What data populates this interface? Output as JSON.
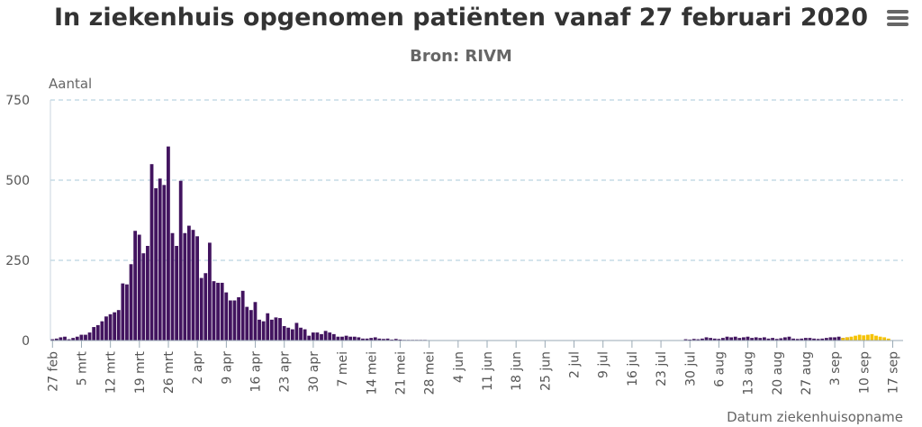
{
  "chart_data": {
    "type": "bar",
    "title": "In ziekenhuis opgenomen patiënten vanaf 27 februari 2020",
    "subtitle": "Bron: RIVM",
    "ylabel": "Aantal",
    "xlabel": "Datum ziekenhuisopname",
    "ylim": [
      0,
      750
    ],
    "yticks": [
      0,
      250,
      500,
      750
    ],
    "grid": true,
    "start_date": "27 feb",
    "xtick_labels": [
      "27 feb",
      "5 mrt",
      "12 mrt",
      "19 mrt",
      "26 mrt",
      "2 apr",
      "9 apr",
      "16 apr",
      "23 apr",
      "30 apr",
      "7 mei",
      "14 mei",
      "21 mei",
      "28 mei",
      "4 jun",
      "11 jun",
      "18 jun",
      "25 jun",
      "2 jul",
      "9 jul",
      "16 jul",
      "23 jul",
      "30 jul",
      "6 aug",
      "13 aug",
      "20 aug",
      "27 aug",
      "3 sep",
      "10 sep",
      "17 sep"
    ],
    "series": [
      {
        "color": "#42145f",
        "values": [
          4,
          6,
          10,
          12,
          4,
          8,
          12,
          18,
          18,
          25,
          42,
          48,
          60,
          75,
          82,
          88,
          95,
          178,
          175,
          238,
          342,
          330,
          272,
          295,
          550,
          475,
          505,
          485,
          605,
          335,
          295,
          498,
          335,
          358,
          345,
          325,
          195,
          210,
          305,
          185,
          180,
          180,
          150,
          125,
          125,
          135,
          155,
          105,
          95,
          120,
          65,
          60,
          85,
          65,
          72,
          70,
          45,
          40,
          35,
          55,
          40,
          35,
          15,
          25,
          25,
          20,
          30,
          25,
          20,
          12,
          12,
          15,
          12,
          12,
          10,
          6,
          6,
          8,
          10,
          6,
          5,
          6,
          3,
          5,
          3,
          2,
          2,
          2,
          2,
          2,
          2,
          1,
          1,
          1,
          1,
          1,
          1,
          1,
          1,
          1,
          1,
          1,
          1,
          1,
          1,
          1,
          1,
          1,
          1,
          1,
          1,
          1,
          1,
          1,
          1,
          1,
          1,
          1,
          1,
          1,
          1,
          1,
          1,
          1,
          1,
          1,
          1,
          1,
          1,
          1,
          1,
          1,
          1,
          1,
          1,
          1,
          1,
          1,
          1,
          1,
          1,
          1,
          1,
          1,
          1,
          1,
          1,
          1,
          1,
          1,
          1,
          1,
          1,
          4,
          3,
          5,
          4,
          6,
          10,
          8,
          6,
          5,
          8,
          12,
          10,
          12,
          8,
          10,
          12,
          8,
          10,
          8,
          10,
          6,
          8,
          5,
          7,
          10,
          12,
          6,
          5,
          6,
          8,
          8,
          6,
          5,
          6,
          8,
          10,
          10,
          12,
          8,
          10,
          0,
          0,
          0,
          0,
          0,
          0,
          0,
          0,
          0,
          0,
          0,
          0,
          0
        ]
      },
      {
        "color": "#f5c200",
        "values": [
          0,
          0,
          0,
          0,
          0,
          0,
          0,
          0,
          0,
          0,
          0,
          0,
          0,
          0,
          0,
          0,
          0,
          0,
          0,
          0,
          0,
          0,
          0,
          0,
          0,
          0,
          0,
          0,
          0,
          0,
          0,
          0,
          0,
          0,
          0,
          0,
          0,
          0,
          0,
          0,
          0,
          0,
          0,
          0,
          0,
          0,
          0,
          0,
          0,
          0,
          0,
          0,
          0,
          0,
          0,
          0,
          0,
          0,
          0,
          0,
          0,
          0,
          0,
          0,
          0,
          0,
          0,
          0,
          0,
          0,
          0,
          0,
          0,
          0,
          0,
          0,
          0,
          0,
          0,
          0,
          0,
          0,
          0,
          0,
          0,
          0,
          0,
          0,
          0,
          0,
          0,
          0,
          0,
          0,
          0,
          0,
          0,
          0,
          0,
          0,
          0,
          0,
          0,
          0,
          0,
          0,
          0,
          0,
          0,
          0,
          0,
          0,
          0,
          0,
          0,
          0,
          0,
          0,
          0,
          0,
          0,
          0,
          0,
          0,
          0,
          0,
          0,
          0,
          0,
          0,
          0,
          0,
          0,
          0,
          0,
          0,
          0,
          0,
          0,
          0,
          0,
          0,
          0,
          0,
          0,
          0,
          0,
          0,
          0,
          0,
          0,
          0,
          0,
          0,
          0,
          0,
          0,
          0,
          0,
          0,
          0,
          0,
          0,
          0,
          0,
          0,
          0,
          0,
          0,
          0,
          0,
          0,
          0,
          0,
          0,
          0,
          0,
          0,
          0,
          0,
          0,
          0,
          0,
          0,
          0,
          0,
          0,
          0,
          0,
          0,
          0,
          8,
          10,
          12,
          15,
          18,
          16,
          18,
          20,
          15,
          12,
          10,
          6
        ]
      }
    ]
  },
  "icons": {
    "menu": "hamburger-menu-icon"
  }
}
